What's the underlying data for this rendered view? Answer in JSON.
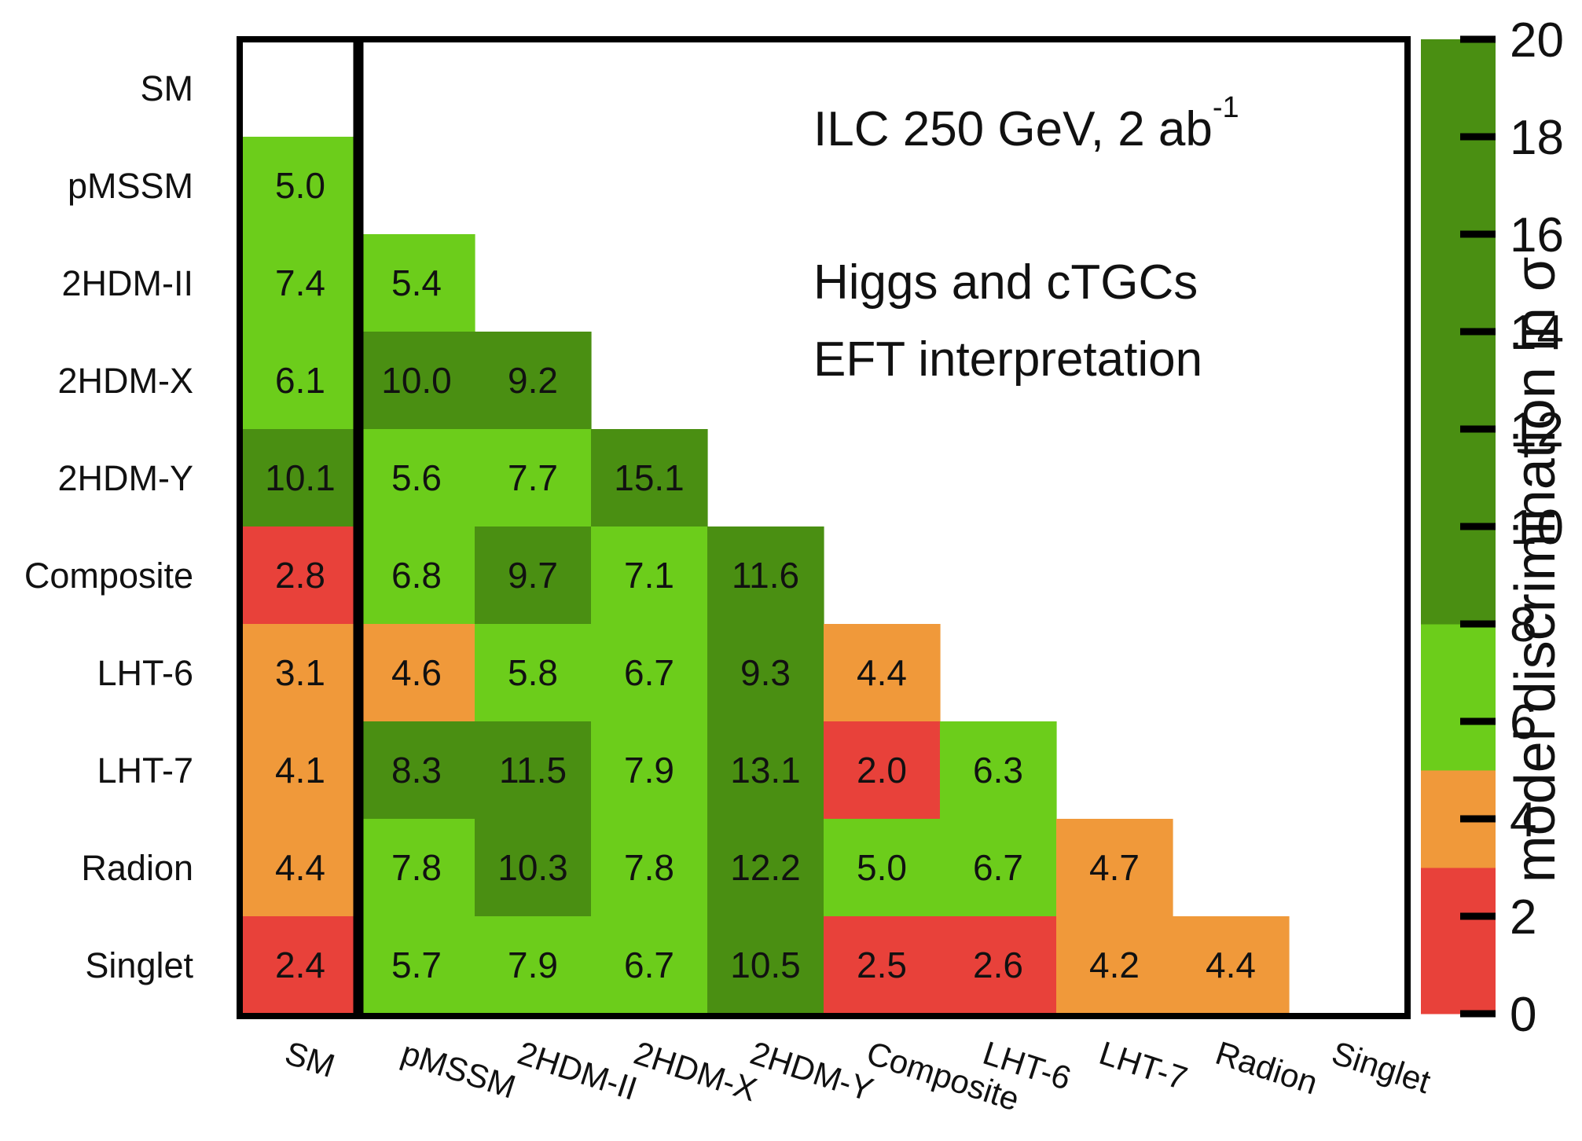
{
  "chart_data": {
    "type": "heatmap",
    "title": "",
    "annotations": {
      "line1_main": "ILC 250 GeV, 2 ab",
      "line1_sup": "-1",
      "line2": "Higgs and cTGCs",
      "line3": "EFT interpretation"
    },
    "models": [
      "SM",
      "pMSSM",
      "2HDM-II",
      "2HDM-X",
      "2HDM-Y",
      "Composite",
      "LHT-6",
      "LHT-7",
      "Radion",
      "Singlet"
    ],
    "rows": [
      "SM",
      "pMSSM",
      "2HDM-II",
      "2HDM-X",
      "2HDM-Y",
      "Composite",
      "LHT-6",
      "LHT-7",
      "Radion",
      "Singlet"
    ],
    "columns": [
      "SM",
      "pMSSM",
      "2HDM-II",
      "2HDM-X",
      "2HDM-Y",
      "Composite",
      "LHT-6",
      "LHT-7",
      "Radion",
      "Singlet"
    ],
    "values": [
      [
        null,
        null,
        null,
        null,
        null,
        null,
        null,
        null,
        null,
        null
      ],
      [
        5.0,
        null,
        null,
        null,
        null,
        null,
        null,
        null,
        null,
        null
      ],
      [
        7.4,
        5.4,
        null,
        null,
        null,
        null,
        null,
        null,
        null,
        null
      ],
      [
        6.1,
        10.0,
        9.2,
        null,
        null,
        null,
        null,
        null,
        null,
        null
      ],
      [
        10.1,
        5.6,
        7.7,
        15.1,
        null,
        null,
        null,
        null,
        null,
        null
      ],
      [
        2.8,
        6.8,
        9.7,
        7.1,
        11.6,
        null,
        null,
        null,
        null,
        null
      ],
      [
        3.1,
        4.6,
        5.8,
        6.7,
        9.3,
        4.4,
        null,
        null,
        null,
        null
      ],
      [
        4.1,
        8.3,
        11.5,
        7.9,
        13.1,
        2.0,
        6.3,
        null,
        null,
        null
      ],
      [
        4.4,
        7.8,
        10.3,
        7.8,
        12.2,
        5.0,
        6.7,
        4.7,
        null,
        null
      ],
      [
        2.4,
        5.7,
        7.9,
        6.7,
        10.5,
        2.5,
        2.6,
        4.2,
        4.4,
        null
      ]
    ],
    "colorbar": {
      "label": "model discrimination in σ",
      "range": [
        0,
        20
      ],
      "ticks": [
        "0",
        "2",
        "4",
        "6",
        "8",
        "10",
        "12",
        "14",
        "16",
        "18",
        "20"
      ],
      "bins": [
        {
          "from": 0,
          "to": 3,
          "color": "#e8413a"
        },
        {
          "from": 3,
          "to": 5,
          "color": "#f0993a"
        },
        {
          "from": 5,
          "to": 8,
          "color": "#6ccd1b"
        },
        {
          "from": 8,
          "to": 20,
          "color": "#4a8f12"
        }
      ]
    }
  }
}
